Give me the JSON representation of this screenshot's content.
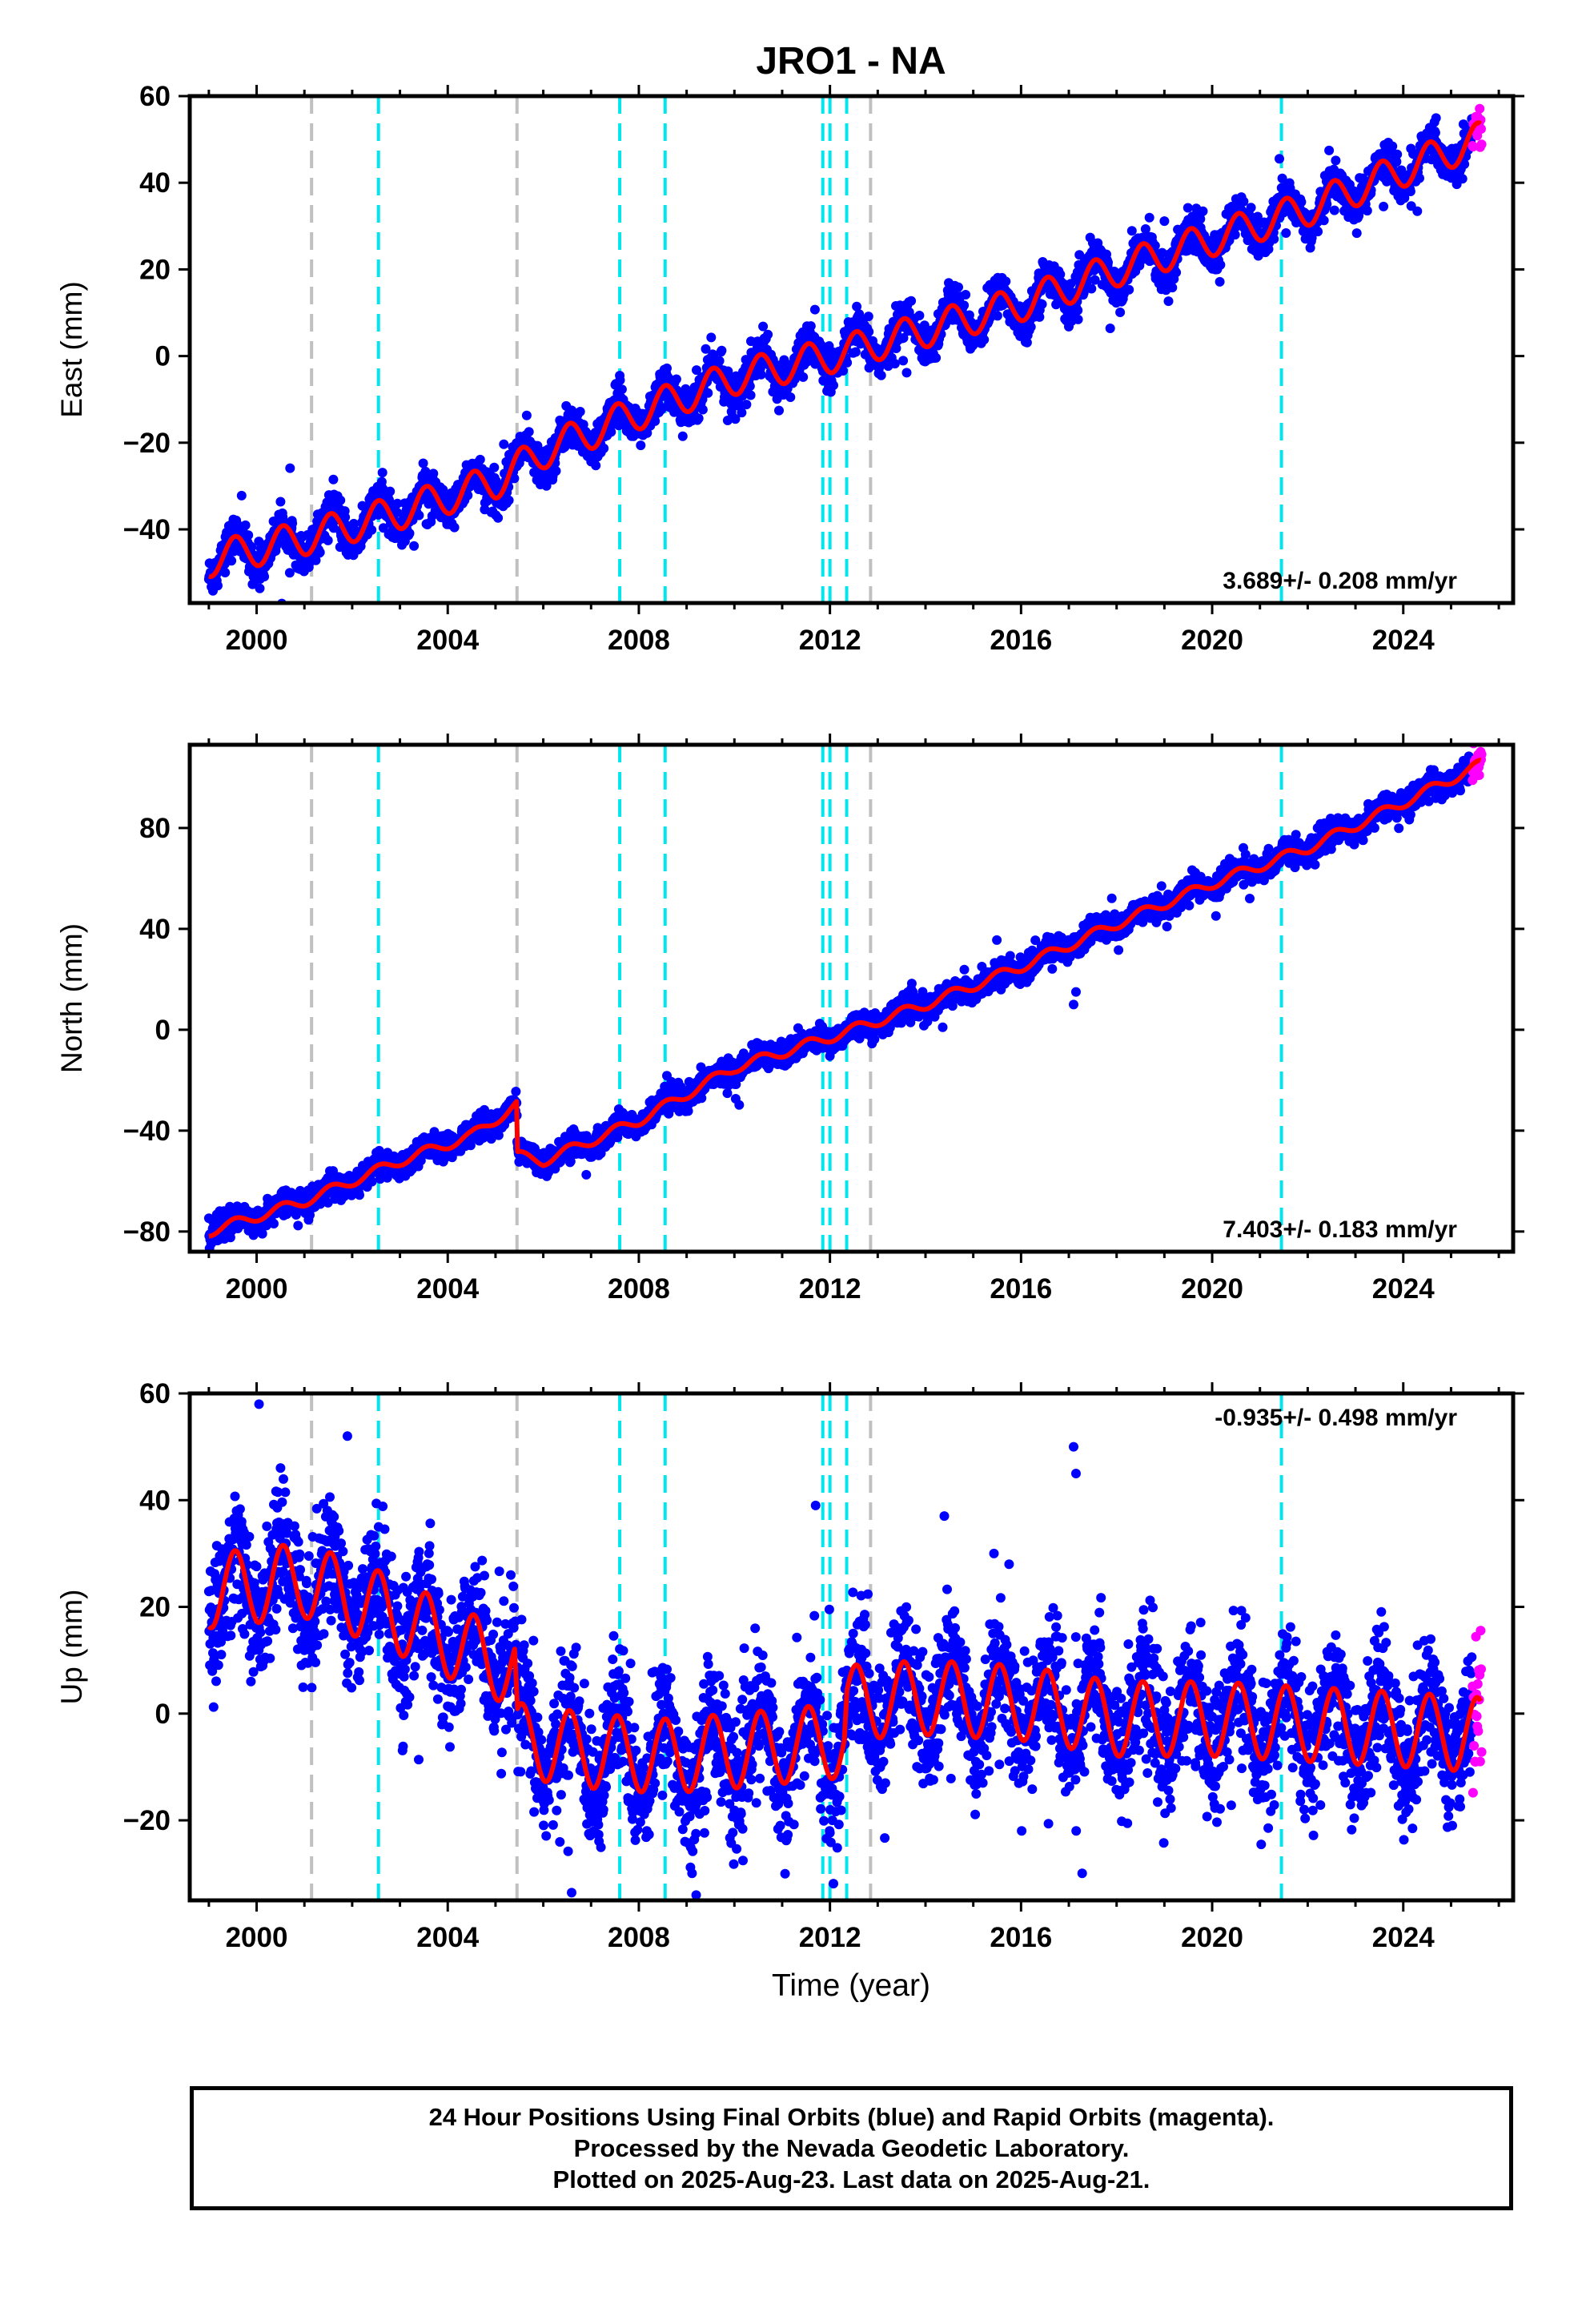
{
  "figure": {
    "title": "JRO1 - NA",
    "xlabel": "Time (year)",
    "caption": [
      "24 Hour Positions Using Final Orbits (blue) and Rapid Orbits (magenta).",
      "Processed by the Nevada Geodetic Laboratory.",
      "Plotted on 2025-Aug-23. Last data on 2025-Aug-21."
    ]
  },
  "colors": {
    "final_orbits": "#0000ff",
    "rapid_orbits": "#ff00ff",
    "model_fit": "#ff0000",
    "antenna_change_lines": "#c0c0c0",
    "earthquake_lines": "#00e5ee"
  },
  "chart_data": [
    {
      "type": "scatter",
      "component": "east",
      "ylabel": "East (mm)",
      "xlim": [
        1998.6,
        2026.3
      ],
      "ylim": [
        -57,
        60
      ],
      "xticks": [
        2000,
        2004,
        2008,
        2012,
        2016,
        2020,
        2024
      ],
      "yticks": [
        -40,
        -20,
        0,
        20,
        40,
        60
      ],
      "rate_label": "3.689+/- 0.208 mm/yr",
      "series": [
        {
          "name": "Final Orbits",
          "color": "#0000ff"
        },
        {
          "name": "Rapid Orbits",
          "color": "#ff00ff"
        },
        {
          "name": "Model",
          "color": "#ff0000"
        }
      ],
      "trend_points": [
        [
          1999.0,
          -47
        ],
        [
          2001.0,
          -42
        ],
        [
          2003.0,
          -36
        ],
        [
          2005.0,
          -29
        ],
        [
          2006.0,
          -22
        ],
        [
          2008.0,
          -13
        ],
        [
          2010.0,
          -5
        ],
        [
          2012.0,
          0
        ],
        [
          2014.0,
          6
        ],
        [
          2016.0,
          12
        ],
        [
          2018.0,
          20
        ],
        [
          2020.0,
          27
        ],
        [
          2022.0,
          34
        ],
        [
          2024.0,
          43
        ],
        [
          2025.6,
          50
        ]
      ],
      "seasonal_amplitude": 4,
      "gray_lines": [
        2001.15,
        2005.45,
        2012.85
      ],
      "cyan_lines": [
        2002.55,
        2007.6,
        2008.55,
        2011.85,
        2012.0,
        2012.35,
        2021.45
      ]
    },
    {
      "type": "scatter",
      "component": "north",
      "ylabel": "North (mm)",
      "xlim": [
        1998.6,
        2026.3
      ],
      "ylim": [
        -88,
        113
      ],
      "xticks": [
        2000,
        2004,
        2008,
        2012,
        2016,
        2020,
        2024
      ],
      "yticks": [
        -80,
        -40,
        0,
        40,
        80
      ],
      "rate_label": "7.403+/- 0.183 mm/yr",
      "series": [
        {
          "name": "Final Orbits",
          "color": "#0000ff"
        },
        {
          "name": "Rapid Orbits",
          "color": "#ff00ff"
        },
        {
          "name": "Model",
          "color": "#ff0000"
        }
      ],
      "trend_points": [
        [
          1999.0,
          -80
        ],
        [
          2001.0,
          -68
        ],
        [
          2003.0,
          -52
        ],
        [
          2004.5,
          -42
        ],
        [
          2005.44,
          -30
        ],
        [
          2005.46,
          -50
        ],
        [
          2006.0,
          -52
        ],
        [
          2008.0,
          -36
        ],
        [
          2010.0,
          -15
        ],
        [
          2012.0,
          -3
        ],
        [
          2014.0,
          10
        ],
        [
          2016.0,
          25
        ],
        [
          2018.0,
          42
        ],
        [
          2020.0,
          58
        ],
        [
          2022.0,
          72
        ],
        [
          2024.0,
          90
        ],
        [
          2025.6,
          105
        ]
      ],
      "seasonal_amplitude": 2,
      "outliers": [
        [
          2017.1,
          10
        ],
        [
          2017.15,
          15
        ]
      ],
      "gray_lines": [
        2001.15,
        2005.45,
        2012.85
      ],
      "cyan_lines": [
        2002.55,
        2007.6,
        2008.55,
        2011.85,
        2012.0,
        2012.35,
        2021.45
      ]
    },
    {
      "type": "scatter",
      "component": "up",
      "ylabel": "Up (mm)",
      "xlabel": "Time (year)",
      "xlim": [
        1998.6,
        2026.3
      ],
      "ylim": [
        -35,
        60
      ],
      "xticks": [
        2000,
        2004,
        2008,
        2012,
        2016,
        2020,
        2024
      ],
      "yticks": [
        -20,
        0,
        20,
        40,
        60
      ],
      "rate_label": "-0.935+/- 0.498 mm/yr",
      "series": [
        {
          "name": "Final Orbits",
          "color": "#0000ff"
        },
        {
          "name": "Rapid Orbits",
          "color": "#ff00ff"
        },
        {
          "name": "Model",
          "color": "#ff0000"
        }
      ],
      "trend_points": [
        [
          1999.0,
          23
        ],
        [
          2001.0,
          25
        ],
        [
          2002.5,
          20
        ],
        [
          2005.4,
          8
        ],
        [
          2005.46,
          -5
        ],
        [
          2007.0,
          -7
        ],
        [
          2008.5,
          -8
        ],
        [
          2010.0,
          -7
        ],
        [
          2012.3,
          -5
        ],
        [
          2012.36,
          2
        ],
        [
          2014.0,
          3
        ],
        [
          2016.0,
          2
        ],
        [
          2018.0,
          -1
        ],
        [
          2020.0,
          -1
        ],
        [
          2022.0,
          -2
        ],
        [
          2024.0,
          -3
        ],
        [
          2025.6,
          -4
        ]
      ],
      "seasonal_amplitude": 7,
      "outliers": [
        [
          2000.05,
          58
        ],
        [
          2001.9,
          52
        ],
        [
          2011.7,
          39
        ],
        [
          2015.75,
          28
        ],
        [
          2017.1,
          50
        ],
        [
          2017.15,
          45
        ],
        [
          2009.2,
          -34
        ]
      ],
      "gray_lines": [
        2001.15,
        2005.45,
        2012.85
      ],
      "cyan_lines": [
        2002.55,
        2007.6,
        2008.55,
        2011.85,
        2012.0,
        2012.35,
        2021.45
      ]
    }
  ]
}
